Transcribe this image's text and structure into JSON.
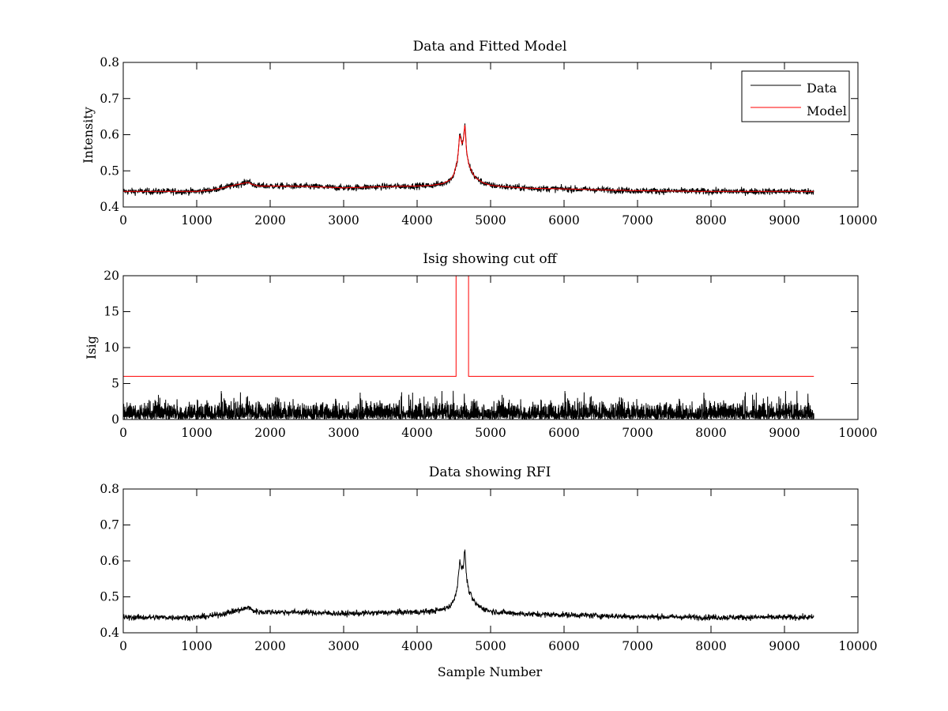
{
  "figure": {
    "background": "#ffffff",
    "colors": {
      "data": "#000000",
      "model": "#ff0000",
      "threshold": "#ff0000"
    }
  },
  "chart_data": [
    {
      "type": "line",
      "title": "Data and Fitted Model",
      "xlabel": "",
      "ylabel": "Intensity",
      "xlim": [
        0,
        10000
      ],
      "ylim": [
        0.4,
        0.8
      ],
      "xticks": [
        0,
        1000,
        2000,
        3000,
        4000,
        5000,
        6000,
        7000,
        8000,
        9000,
        10000
      ],
      "yticks": [
        0.4,
        0.5,
        0.6,
        0.7,
        0.8
      ],
      "grid": false,
      "legend": {
        "placement": "top-right",
        "entries": [
          "Data",
          "Model"
        ]
      },
      "series": [
        {
          "name": "Data",
          "color": "#000000",
          "noise": 0.0045,
          "x": [
            0,
            500,
            1000,
            1200,
            1400,
            1550,
            1650,
            1700,
            1760,
            1850,
            2000,
            2500,
            3000,
            3500,
            4000,
            4200,
            4350,
            4450,
            4500,
            4550,
            4580,
            4610,
            4630,
            4650,
            4670,
            4700,
            4750,
            4800,
            4900,
            5000,
            5200,
            5500,
            6000,
            7000,
            8000,
            9000,
            9400
          ],
          "y": [
            0.443,
            0.443,
            0.443,
            0.447,
            0.455,
            0.462,
            0.466,
            0.472,
            0.462,
            0.458,
            0.458,
            0.457,
            0.453,
            0.456,
            0.458,
            0.46,
            0.465,
            0.475,
            0.49,
            0.53,
            0.605,
            0.575,
            0.585,
            0.635,
            0.56,
            0.52,
            0.495,
            0.48,
            0.467,
            0.46,
            0.456,
            0.452,
            0.45,
            0.445,
            0.443,
            0.443,
            0.443
          ]
        },
        {
          "name": "Model",
          "color": "#ff0000",
          "noise": 0,
          "x": [
            0,
            500,
            1000,
            1200,
            1400,
            1550,
            1650,
            1700,
            1760,
            1850,
            2000,
            2500,
            3000,
            3500,
            4000,
            4200,
            4350,
            4450,
            4500,
            4550,
            4580,
            4610,
            4630,
            4650,
            4670,
            4700,
            4750,
            4800,
            4900,
            5000,
            5200,
            5500,
            6000,
            7000,
            8000,
            9000,
            9400
          ],
          "y": [
            0.443,
            0.443,
            0.443,
            0.447,
            0.455,
            0.462,
            0.466,
            0.468,
            0.462,
            0.458,
            0.458,
            0.457,
            0.453,
            0.456,
            0.458,
            0.46,
            0.465,
            0.475,
            0.49,
            0.53,
            0.6,
            0.575,
            0.585,
            0.63,
            0.56,
            0.52,
            0.495,
            0.48,
            0.467,
            0.46,
            0.456,
            0.452,
            0.45,
            0.445,
            0.443,
            0.443,
            0.443
          ]
        }
      ]
    },
    {
      "type": "line",
      "title": "Isig showing cut off",
      "xlabel": "",
      "ylabel": "Isig",
      "xlim": [
        0,
        10000
      ],
      "ylim": [
        0,
        20
      ],
      "xticks": [
        0,
        1000,
        2000,
        3000,
        4000,
        5000,
        6000,
        7000,
        8000,
        9000,
        10000
      ],
      "yticks": [
        0,
        5,
        10,
        15,
        20
      ],
      "grid": false,
      "series": [
        {
          "color": "#000000",
          "style": "noise",
          "x_range": [
            0,
            9400
          ],
          "typical_max": 2.5,
          "peak_max": 4
        },
        {
          "color": "#ff0000",
          "style": "step",
          "x": [
            0,
            4530,
            4530,
            4700,
            4700,
            9400
          ],
          "y": [
            6,
            6,
            20,
            20,
            6,
            6
          ]
        }
      ]
    },
    {
      "type": "line",
      "title": "Data showing RFI",
      "xlabel": "Sample Number",
      "ylabel": "",
      "xlim": [
        0,
        10000
      ],
      "ylim": [
        0.4,
        0.8
      ],
      "xticks": [
        0,
        1000,
        2000,
        3000,
        4000,
        5000,
        6000,
        7000,
        8000,
        9000,
        10000
      ],
      "yticks": [
        0.4,
        0.5,
        0.6,
        0.7,
        0.8
      ],
      "grid": false,
      "series": [
        {
          "color": "#000000",
          "noise": 0.004,
          "x": [
            0,
            500,
            1000,
            1200,
            1400,
            1550,
            1650,
            1700,
            1760,
            1850,
            2000,
            2500,
            3000,
            3500,
            4000,
            4200,
            4350,
            4450,
            4500,
            4550,
            4580,
            4610,
            4630,
            4650,
            4670,
            4700,
            4750,
            4800,
            4900,
            5000,
            5200,
            5500,
            6000,
            7000,
            8000,
            9000,
            9400
          ],
          "y": [
            0.443,
            0.443,
            0.443,
            0.447,
            0.455,
            0.462,
            0.466,
            0.472,
            0.462,
            0.458,
            0.458,
            0.457,
            0.453,
            0.456,
            0.458,
            0.46,
            0.465,
            0.475,
            0.49,
            0.53,
            0.605,
            0.575,
            0.585,
            0.635,
            0.56,
            0.52,
            0.495,
            0.48,
            0.467,
            0.46,
            0.456,
            0.452,
            0.45,
            0.445,
            0.443,
            0.443,
            0.443
          ]
        }
      ]
    }
  ]
}
